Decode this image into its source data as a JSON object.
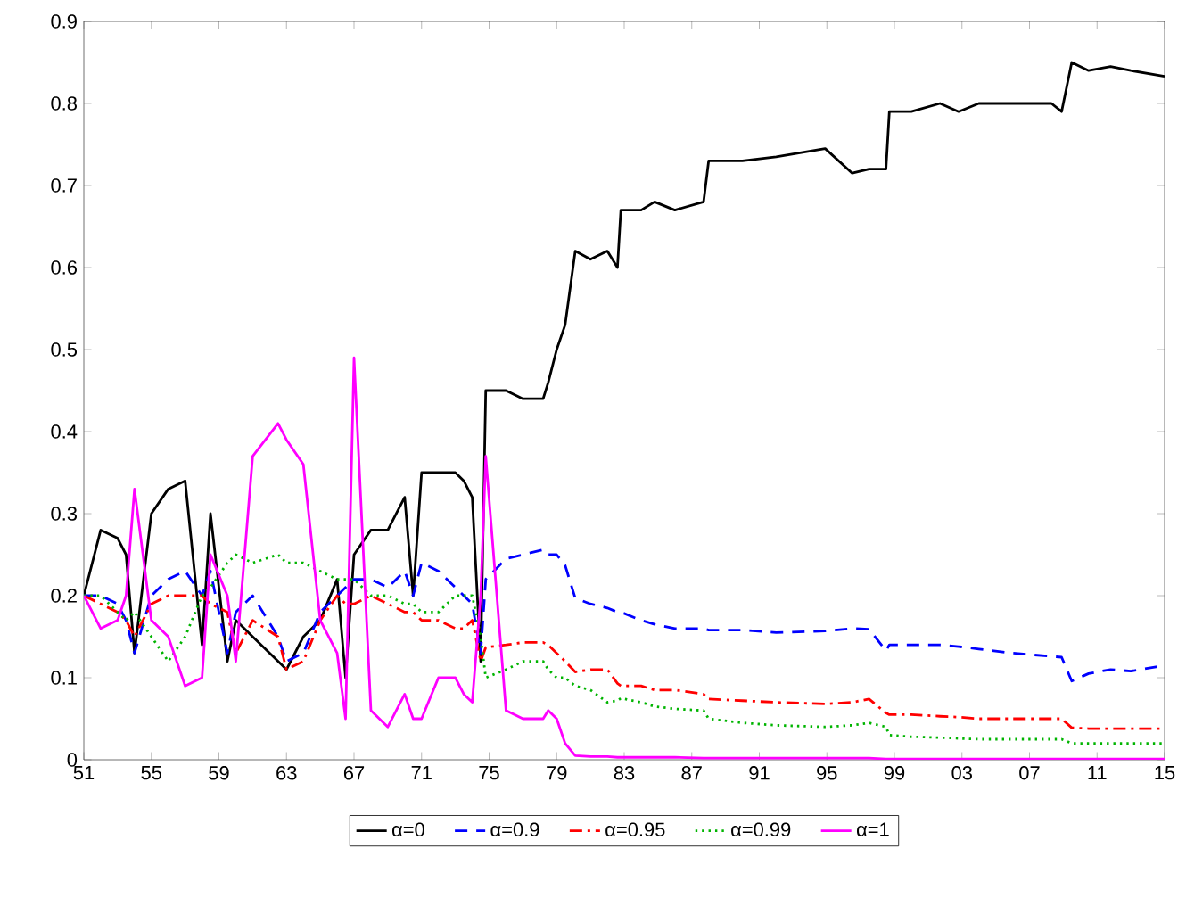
{
  "chart_data": {
    "type": "line",
    "x": [
      1951,
      1952,
      1953,
      1953.5,
      1954,
      1955,
      1956,
      1957,
      1958,
      1958.5,
      1959.5,
      1960,
      1961,
      1962.5,
      1963,
      1964,
      1965,
      1966,
      1966.5,
      1967,
      1968,
      1969,
      1970,
      1970.5,
      1971,
      1972,
      1973,
      1973.5,
      1974,
      1974.5,
      1974.8,
      1976,
      1977,
      1978.2,
      1978.5,
      1979,
      1979.5,
      1980.1,
      1981,
      1982,
      1982.6,
      1982.8,
      1984,
      1984.8,
      1986,
      1987.7,
      1988,
      1990,
      1992,
      1994.9,
      1996.5,
      1997.5,
      1998.5,
      1998.7,
      2000,
      2001.7,
      2002.8,
      2004,
      2006,
      2008.3,
      2008.9,
      2009.5,
      2010.5,
      2011.8,
      2013,
      2015
    ],
    "series": [
      {
        "name": "α=0",
        "color": "#000000",
        "line_style": "solid",
        "values": [
          0.2,
          0.28,
          0.27,
          0.25,
          0.13,
          0.3,
          0.33,
          0.34,
          0.14,
          0.3,
          0.12,
          0.17,
          0.15,
          0.12,
          0.11,
          0.15,
          0.17,
          0.22,
          0.1,
          0.25,
          0.28,
          0.28,
          0.32,
          0.2,
          0.35,
          0.35,
          0.35,
          0.34,
          0.32,
          0.12,
          0.45,
          0.45,
          0.44,
          0.44,
          0.46,
          0.5,
          0.53,
          0.62,
          0.61,
          0.62,
          0.6,
          0.67,
          0.67,
          0.68,
          0.67,
          0.68,
          0.73,
          0.73,
          0.735,
          0.745,
          0.715,
          0.72,
          0.72,
          0.79,
          0.79,
          0.8,
          0.79,
          0.8,
          0.8,
          0.8,
          0.79,
          0.85,
          0.84,
          0.845,
          0.84,
          0.833
        ]
      },
      {
        "name": "α=0.9",
        "color": "#0000ff",
        "line_style": "dashed",
        "values": [
          0.2,
          0.2,
          0.19,
          0.17,
          0.13,
          0.2,
          0.22,
          0.23,
          0.2,
          0.23,
          0.13,
          0.18,
          0.2,
          0.15,
          0.12,
          0.13,
          0.18,
          0.2,
          0.21,
          0.22,
          0.22,
          0.21,
          0.23,
          0.2,
          0.24,
          0.23,
          0.21,
          0.2,
          0.19,
          0.13,
          0.22,
          0.245,
          0.25,
          0.256,
          0.25,
          0.25,
          0.237,
          0.197,
          0.19,
          0.185,
          0.18,
          0.18,
          0.17,
          0.165,
          0.16,
          0.16,
          0.158,
          0.158,
          0.155,
          0.157,
          0.16,
          0.159,
          0.133,
          0.14,
          0.14,
          0.14,
          0.138,
          0.135,
          0.13,
          0.126,
          0.125,
          0.096,
          0.105,
          0.11,
          0.108,
          0.115
        ]
      },
      {
        "name": "α=0.95",
        "color": "#ff0000",
        "line_style": "dashdot",
        "values": [
          0.2,
          0.19,
          0.18,
          0.17,
          0.15,
          0.19,
          0.2,
          0.2,
          0.2,
          0.19,
          0.18,
          0.13,
          0.17,
          0.15,
          0.11,
          0.12,
          0.17,
          0.2,
          0.19,
          0.19,
          0.2,
          0.19,
          0.18,
          0.18,
          0.17,
          0.17,
          0.16,
          0.16,
          0.17,
          0.12,
          0.137,
          0.14,
          0.143,
          0.143,
          0.14,
          0.13,
          0.12,
          0.107,
          0.11,
          0.11,
          0.093,
          0.09,
          0.09,
          0.085,
          0.085,
          0.08,
          0.074,
          0.072,
          0.07,
          0.068,
          0.07,
          0.074,
          0.057,
          0.055,
          0.055,
          0.053,
          0.052,
          0.05,
          0.05,
          0.05,
          0.05,
          0.039,
          0.038,
          0.038,
          0.038,
          0.038
        ]
      },
      {
        "name": "α=0.99",
        "color": "#00b400",
        "line_style": "dotted",
        "values": [
          0.2,
          0.2,
          0.18,
          0.17,
          0.18,
          0.15,
          0.12,
          0.15,
          0.2,
          0.21,
          0.24,
          0.25,
          0.24,
          0.25,
          0.24,
          0.24,
          0.23,
          0.22,
          0.22,
          0.22,
          0.2,
          0.2,
          0.19,
          0.19,
          0.18,
          0.18,
          0.2,
          0.2,
          0.2,
          0.15,
          0.1,
          0.11,
          0.12,
          0.12,
          0.11,
          0.1,
          0.1,
          0.09,
          0.085,
          0.07,
          0.072,
          0.075,
          0.07,
          0.065,
          0.062,
          0.06,
          0.05,
          0.045,
          0.042,
          0.04,
          0.042,
          0.045,
          0.04,
          0.03,
          0.028,
          0.027,
          0.026,
          0.025,
          0.025,
          0.025,
          0.025,
          0.02,
          0.02,
          0.02,
          0.02,
          0.02
        ]
      },
      {
        "name": "α=1",
        "color": "#ff00ff",
        "line_style": "solid",
        "values": [
          0.2,
          0.16,
          0.17,
          0.2,
          0.33,
          0.17,
          0.15,
          0.09,
          0.1,
          0.25,
          0.2,
          0.12,
          0.37,
          0.41,
          0.39,
          0.36,
          0.17,
          0.13,
          0.05,
          0.49,
          0.06,
          0.04,
          0.08,
          0.05,
          0.05,
          0.1,
          0.1,
          0.08,
          0.07,
          0.2,
          0.37,
          0.06,
          0.05,
          0.05,
          0.06,
          0.05,
          0.02,
          0.005,
          0.004,
          0.004,
          0.003,
          0.003,
          0.003,
          0.003,
          0.003,
          0.002,
          0.002,
          0.002,
          0.002,
          0.002,
          0.002,
          0.002,
          0.001,
          0.001,
          0.001,
          0.001,
          0.001,
          0.001,
          0.001,
          0.001,
          0.001,
          0.001,
          0.001,
          0.001,
          0.001,
          0.001
        ]
      }
    ],
    "xlim": [
      1951,
      2015
    ],
    "xticks": [
      {
        "value": 1951,
        "label": "51"
      },
      {
        "value": 1955,
        "label": "55"
      },
      {
        "value": 1959,
        "label": "59"
      },
      {
        "value": 1963,
        "label": "63"
      },
      {
        "value": 1967,
        "label": "67"
      },
      {
        "value": 1971,
        "label": "71"
      },
      {
        "value": 1975,
        "label": "75"
      },
      {
        "value": 1979,
        "label": "79"
      },
      {
        "value": 1983,
        "label": "83"
      },
      {
        "value": 1987,
        "label": "87"
      },
      {
        "value": 1991,
        "label": "91"
      },
      {
        "value": 1995,
        "label": "95"
      },
      {
        "value": 1999,
        "label": "99"
      },
      {
        "value": 2003,
        "label": "03"
      },
      {
        "value": 2007,
        "label": "07"
      },
      {
        "value": 2011,
        "label": "11"
      },
      {
        "value": 2015,
        "label": "15"
      }
    ],
    "ylim": [
      0,
      0.9
    ],
    "yticks": [
      0,
      0.1,
      0.2,
      0.3,
      0.4,
      0.5,
      0.6,
      0.7,
      0.8,
      0.9
    ],
    "grid": false,
    "legend": "bottom"
  }
}
